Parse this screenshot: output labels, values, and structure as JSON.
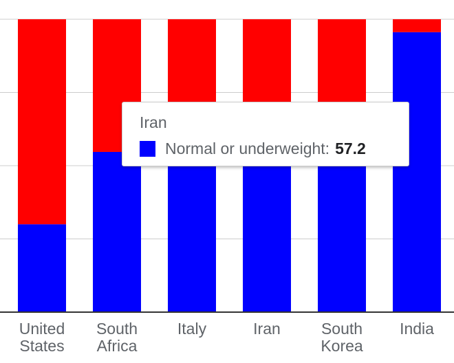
{
  "chart_data": {
    "type": "bar",
    "stacked": true,
    "categories": [
      [
        "United",
        "States"
      ],
      [
        "South",
        "Africa"
      ],
      [
        "Italy"
      ],
      [
        "Iran"
      ],
      [
        "South",
        "Korea"
      ],
      [
        "India"
      ]
    ],
    "series": [
      {
        "values": [
          30,
          54.7,
          57,
          57.2,
          57.5,
          95.6
        ],
        "color": "#0000ff"
      },
      {
        "values": [
          70,
          45.3,
          43,
          42.8,
          42.5,
          4.4
        ],
        "color": "#ff0000"
      }
    ],
    "ylim": [
      0,
      100
    ],
    "grid": true,
    "gridlines": [
      0,
      25,
      50,
      75,
      100
    ],
    "tooltip": {
      "category": "Iran",
      "series": "Normal or underweight:",
      "value": "57.2",
      "swatch_color": "#0000ff"
    }
  }
}
